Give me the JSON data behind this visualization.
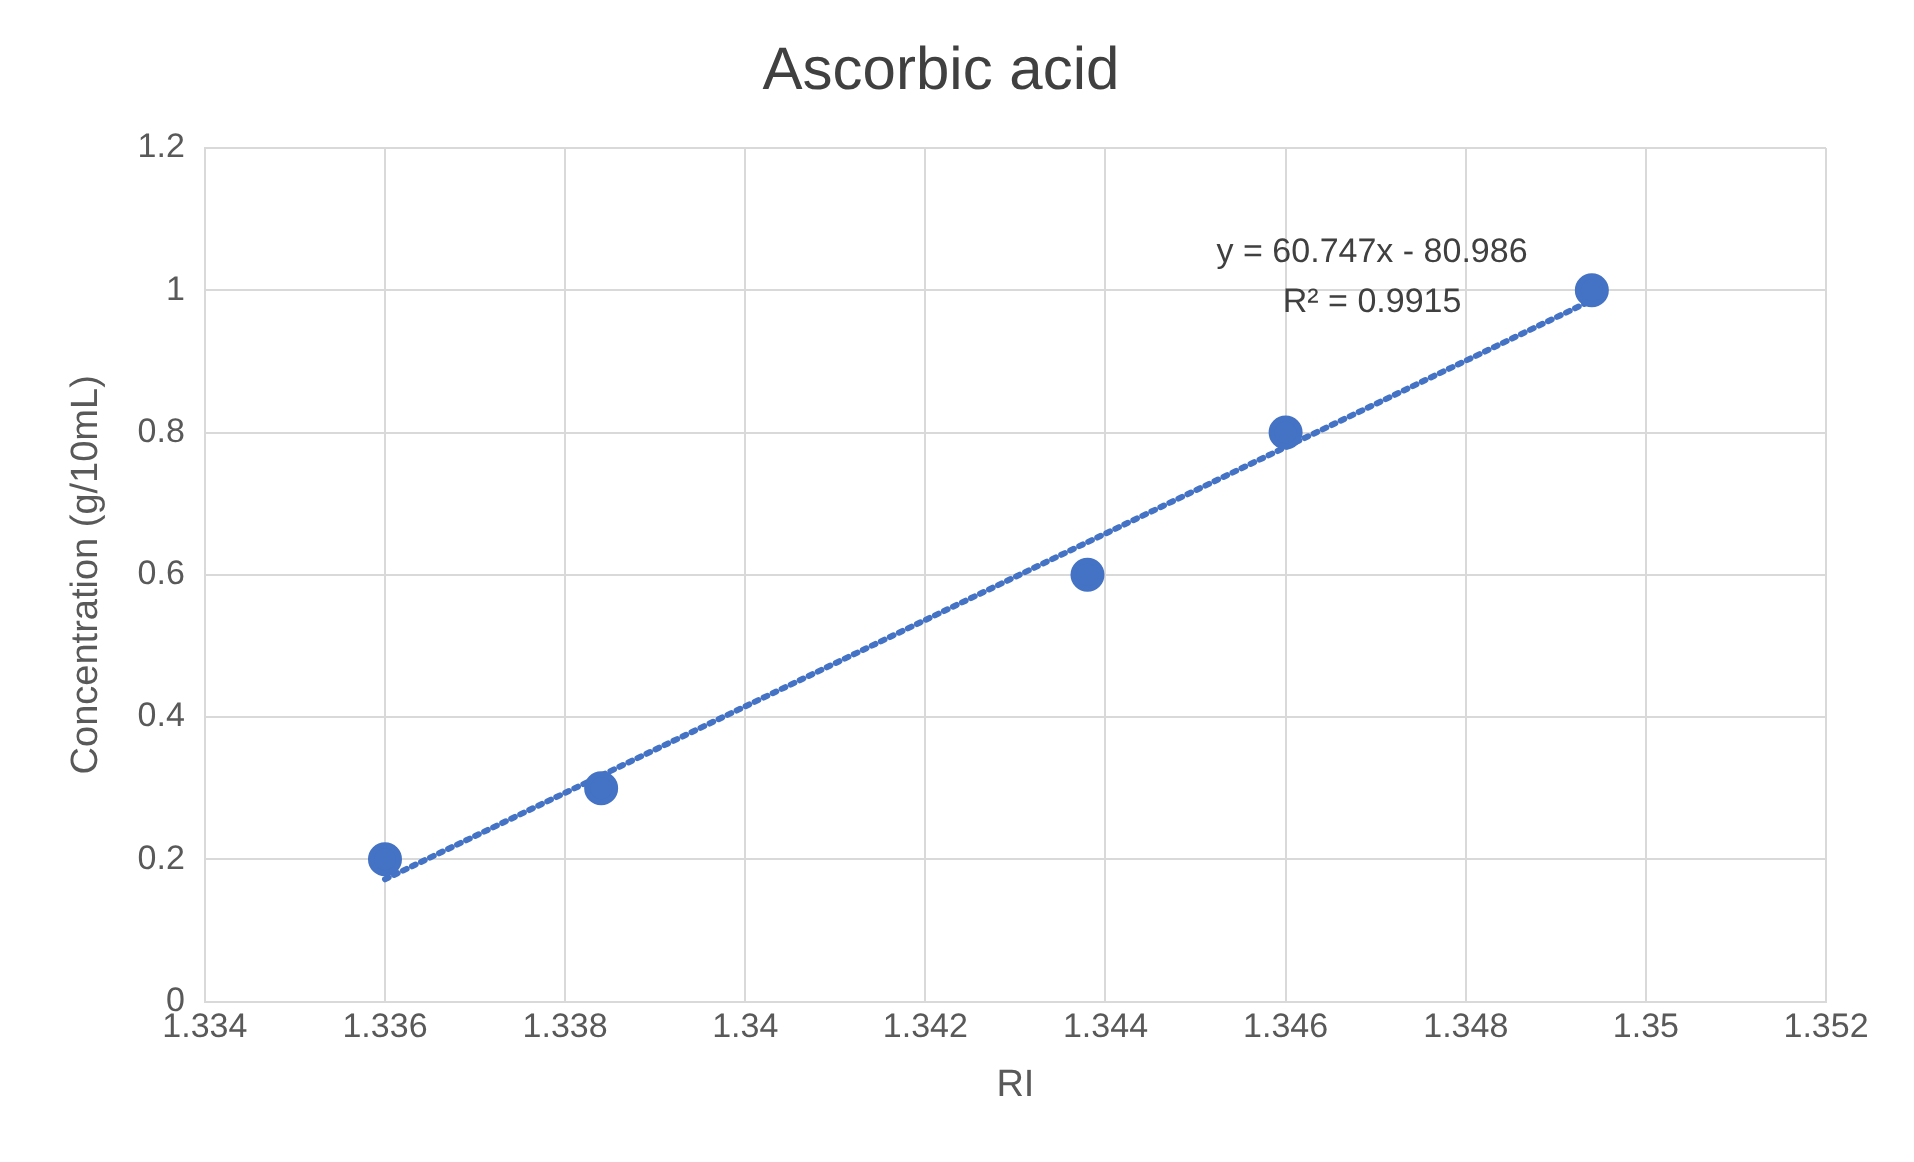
{
  "chart_data": {
    "type": "scatter",
    "title": "Ascorbic acid",
    "xlabel": "RI",
    "ylabel": "Concentration (g/10mL)",
    "series": [
      {
        "type": "scatter",
        "color": "#4472c4",
        "x": [
          1.336,
          1.3384,
          1.3438,
          1.346,
          1.3494
        ],
        "values": [
          0.2,
          0.3,
          0.6,
          0.8,
          1.0
        ]
      },
      {
        "type": "line",
        "color": "#4472c4",
        "x": [
          1.336,
          1.3494
        ],
        "values": [
          0.172,
          0.986
        ],
        "line_style": "dotted",
        "marker": "none"
      }
    ],
    "annotations": [
      "y = 60.747x - 80.986",
      "R² = 0.9915"
    ],
    "xlim": [
      1.334,
      1.352
    ],
    "xticks": [
      1.334,
      1.336,
      1.338,
      1.34,
      1.342,
      1.344,
      1.346,
      1.348,
      1.35,
      1.352
    ],
    "ylim": [
      0,
      1.2
    ],
    "yticks": [
      0,
      0.2,
      0.4,
      0.6,
      0.8,
      1,
      1.2
    ],
    "grid": true,
    "legend": false,
    "marker": "circle"
  }
}
